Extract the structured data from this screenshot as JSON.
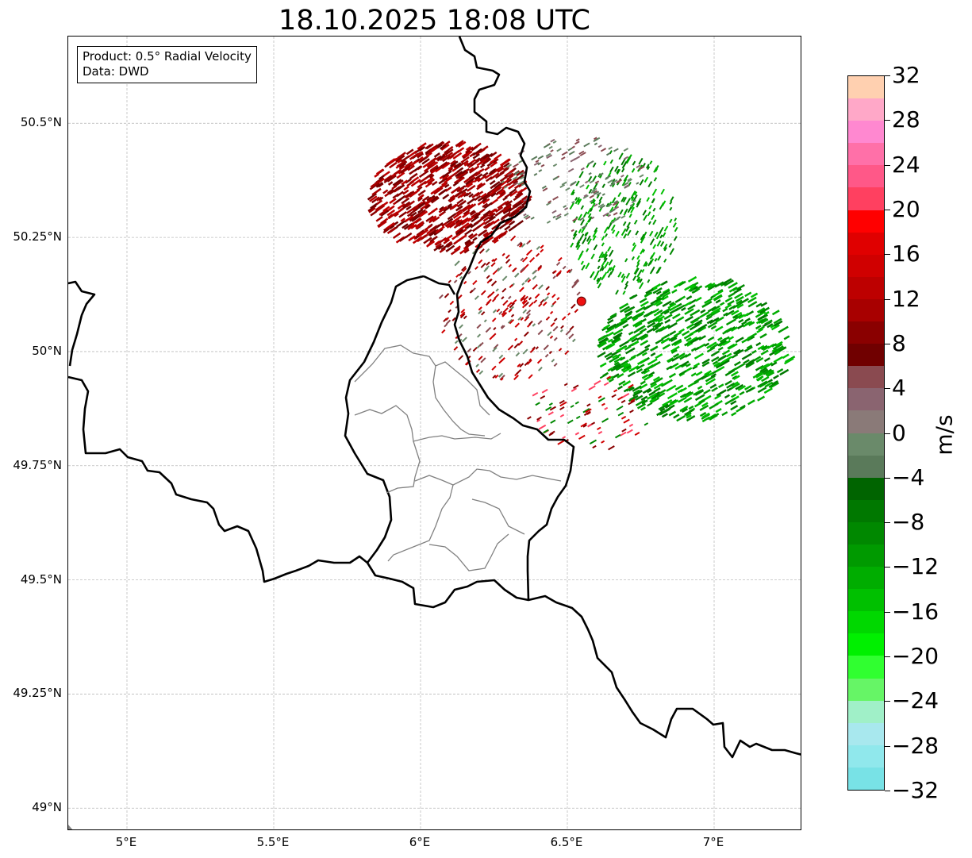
{
  "title": "18.10.2025 18:08 UTC",
  "info_box": {
    "product": "Product: 0.5° Radial Velocity",
    "data_source": "Data: DWD"
  },
  "map": {
    "lon_range": [
      4.8,
      7.3
    ],
    "lat_range": [
      48.95,
      50.69
    ],
    "lat_ticks": [
      {
        "value": 50.5,
        "label": "50.5°N"
      },
      {
        "value": 50.25,
        "label": "50.25°N"
      },
      {
        "value": 50.0,
        "label": "50°N"
      },
      {
        "value": 49.75,
        "label": "49.75°N"
      },
      {
        "value": 49.5,
        "label": "49.5°N"
      },
      {
        "value": 49.25,
        "label": "49.25°N"
      },
      {
        "value": 49.0,
        "label": "49°N"
      }
    ],
    "lon_ticks": [
      {
        "value": 5.0,
        "label": "5°E"
      },
      {
        "value": 5.5,
        "label": "5.5°E"
      },
      {
        "value": 6.0,
        "label": "6°E"
      },
      {
        "value": 6.5,
        "label": "6.5°E"
      },
      {
        "value": 7.0,
        "label": "7°E"
      }
    ],
    "radar_site": {
      "lon": 6.548,
      "lat": 50.11
    },
    "colors": {
      "border": "#000000",
      "province_lines": "#808080",
      "grid": "#bbbbbb",
      "site": "#ee1111"
    }
  },
  "colorbar": {
    "label": "m/s",
    "min": -32,
    "max": 32,
    "tick_labels": [
      "32",
      "28",
      "24",
      "20",
      "16",
      "12",
      "8",
      "4",
      "0",
      "−4",
      "−8",
      "−12",
      "−16",
      "−20",
      "−24",
      "−28",
      "−32"
    ],
    "colors_top_to_bottom": [
      "#ffd0b0",
      "#ffa8c8",
      "#ff88d0",
      "#ff70a8",
      "#ff5888",
      "#ff4060",
      "#ff0000",
      "#e00000",
      "#d00000",
      "#bd0000",
      "#a80000",
      "#8a0000",
      "#700000",
      "#8a4a50",
      "#8a6470",
      "#8a7a78",
      "#6a8a6a",
      "#5a7a5a",
      "#006400",
      "#007800",
      "#008800",
      "#009a00",
      "#00ad00",
      "#00c000",
      "#00d800",
      "#00f000",
      "#30ff30",
      "#66f566",
      "#a0f0c8",
      "#a8e8ee",
      "#90e8ec",
      "#78e2e6"
    ]
  }
}
